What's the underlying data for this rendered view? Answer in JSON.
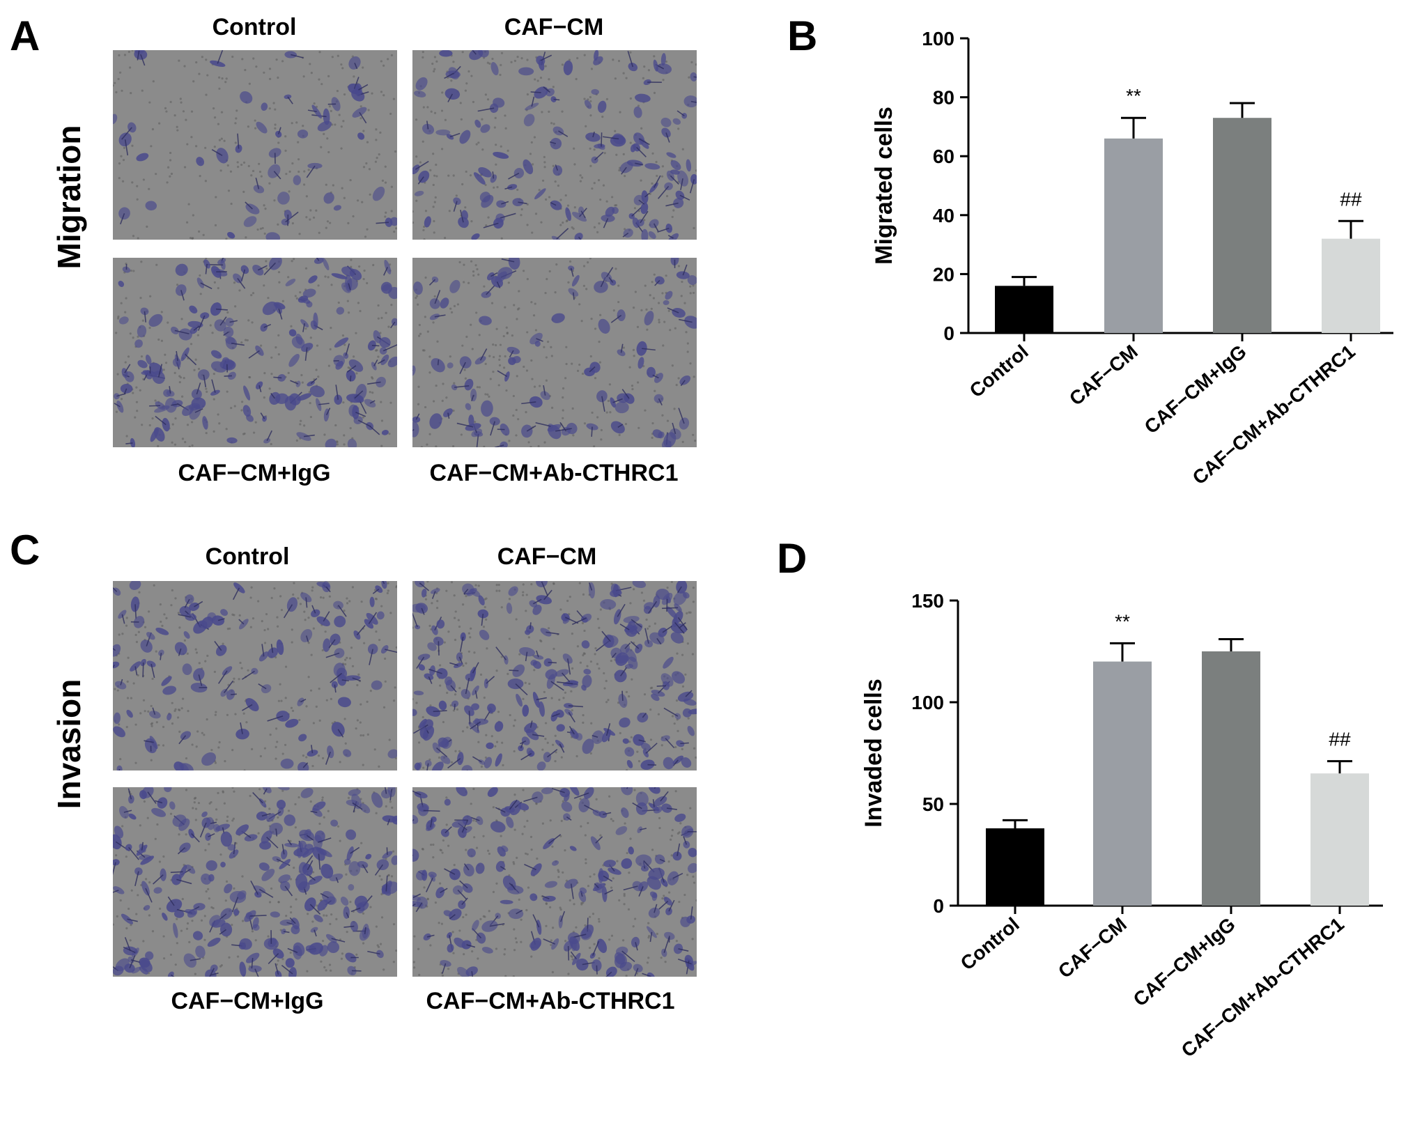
{
  "figure": {
    "panels": [
      {
        "letter": "A",
        "side_label": "Migration",
        "images": [
          {
            "label": "Control",
            "cell_density": 0.15
          },
          {
            "label": "CAF−CM",
            "cell_density": 0.55
          },
          {
            "label": "CAF−CM+IgG",
            "cell_density": 0.75
          },
          {
            "label": "CAF−CM+Ab-CTHRC1",
            "cell_density": 0.4
          }
        ]
      },
      {
        "letter": "C",
        "side_label": "Invasion",
        "images": [
          {
            "label": "Control",
            "cell_density": 0.45
          },
          {
            "label": "CAF−CM",
            "cell_density": 1.0
          },
          {
            "label": "CAF−CM+IgG",
            "cell_density": 1.0
          },
          {
            "label": "CAF−CM+Ab-CTHRC1",
            "cell_density": 0.8
          }
        ]
      }
    ],
    "chart_letters": [
      "B",
      "D"
    ],
    "cell_color": "#4a4a8c",
    "background_color": "#8b8b8b"
  },
  "chart_data": [
    {
      "type": "bar",
      "categories": [
        "Control",
        "CAF−CM",
        "CAF−CM+IgG",
        "CAF−CM+Ab-CTHRC1"
      ],
      "values": [
        16,
        66,
        73,
        32
      ],
      "errors": [
        3,
        7,
        5,
        6
      ],
      "annotations": [
        "",
        "**",
        "",
        "##"
      ],
      "colors": [
        "#000000",
        "#9a9ea4",
        "#7b7f7e",
        "#d6d9d8"
      ],
      "ylabel": "Migrated cells",
      "ylim": [
        0,
        100
      ],
      "yticks": [
        0,
        20,
        40,
        60,
        80,
        100
      ]
    },
    {
      "type": "bar",
      "categories": [
        "Control",
        "CAF−CM",
        "CAF−CM+IgG",
        "CAF−CM+Ab-CTHRC1"
      ],
      "values": [
        38,
        120,
        125,
        65
      ],
      "errors": [
        4,
        9,
        6,
        6
      ],
      "annotations": [
        "",
        "**",
        "",
        "##"
      ],
      "colors": [
        "#000000",
        "#9a9ea4",
        "#7b7f7e",
        "#d6d9d8"
      ],
      "ylabel": "Invaded cells",
      "ylim": [
        0,
        150
      ],
      "yticks": [
        0,
        50,
        100,
        150
      ]
    }
  ]
}
